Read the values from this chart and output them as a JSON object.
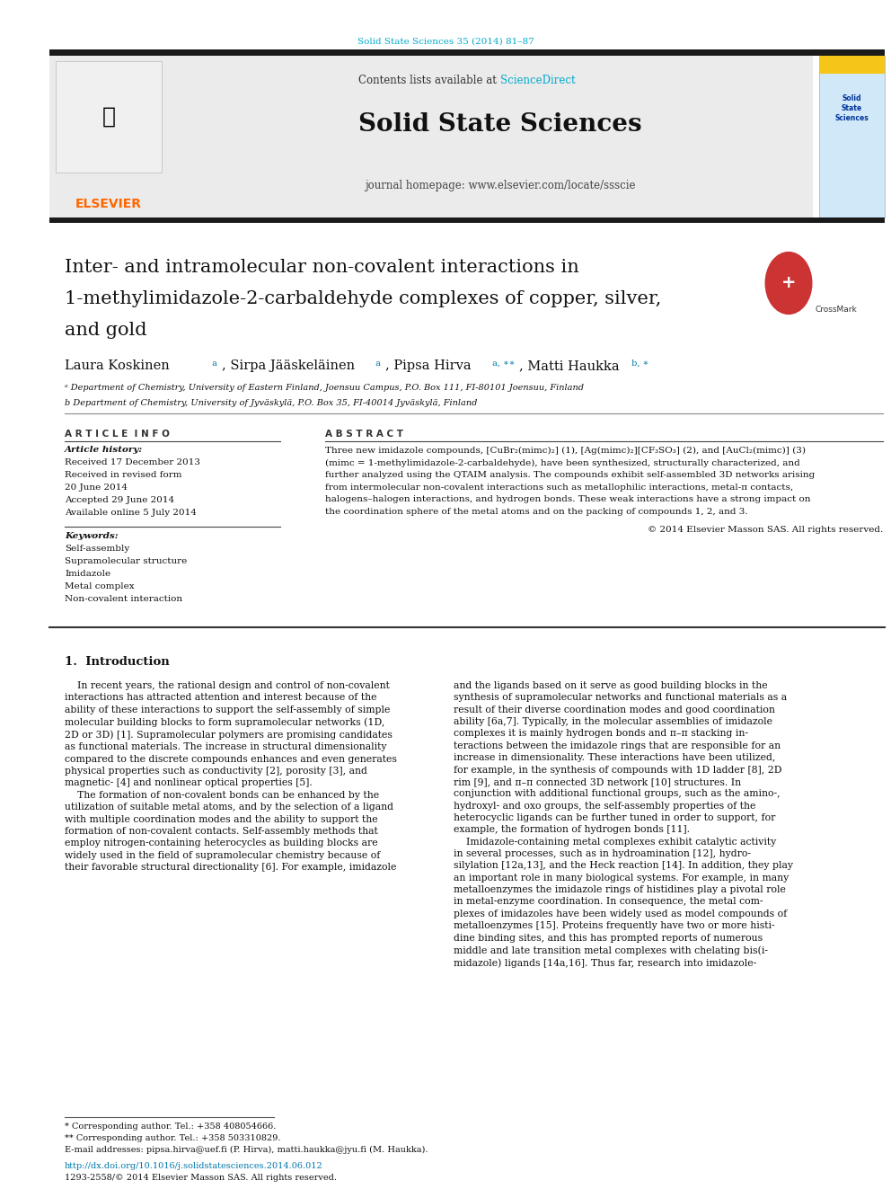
{
  "page_width": 9.92,
  "page_height": 13.23,
  "bg_color": "#ffffff",
  "top_link_text": "Solid State Sciences 35 (2014) 81–87",
  "top_link_color": "#00aacc",
  "header_bg_color": "#ebebeb",
  "sciencedirect_color": "#00aacc",
  "journal_title": "Solid State Sciences",
  "journal_homepage": "journal homepage: www.elsevier.com/locate/ssscie",
  "dark_bar_color": "#1a1a1a",
  "elsevier_color": "#FF6600",
  "article_title_line1": "Inter- and intramolecular non-covalent interactions in",
  "article_title_line2": "1-methylimidazole-2-carbaldehyde complexes of copper, silver,",
  "article_title_line3": "and gold",
  "affil_a": "ᵃ Department of Chemistry, University of Eastern Finland, Joensuu Campus, P.O. Box 111, FI-80101 Joensuu, Finland",
  "affil_b": "b Department of Chemistry, University of Jyväskylä, P.O. Box 35, FI-40014 Jyväskylä, Finland",
  "article_info_title": "A R T I C L E  I N F O",
  "abstract_title": "A B S T R A C T",
  "article_history_label": "Article history:",
  "received": "Received 17 December 2013",
  "received_revised": "Received in revised form",
  "revised_date": "20 June 2014",
  "accepted": "Accepted 29 June 2014",
  "available": "Available online 5 July 2014",
  "keywords_label": "Keywords:",
  "keywords": [
    "Self-assembly",
    "Supramolecular structure",
    "Imidazole",
    "Metal complex",
    "Non-covalent interaction"
  ],
  "copyright_text": "© 2014 Elsevier Masson SAS. All rights reserved.",
  "footnote1": "* Corresponding author. Tel.: +358 408054666.",
  "footnote2": "** Corresponding author. Tel.: +358 503310829.",
  "footnote_email": "E-mail addresses: pipsa.hirva@uef.fi (P. Hirva), matti.haukka@jyu.fi (M. Haukka).",
  "doi_text": "http://dx.doi.org/10.1016/j.solidstatesciences.2014.06.012",
  "issn_text": "1293-2558/© 2014 Elsevier Masson SAS. All rights reserved."
}
